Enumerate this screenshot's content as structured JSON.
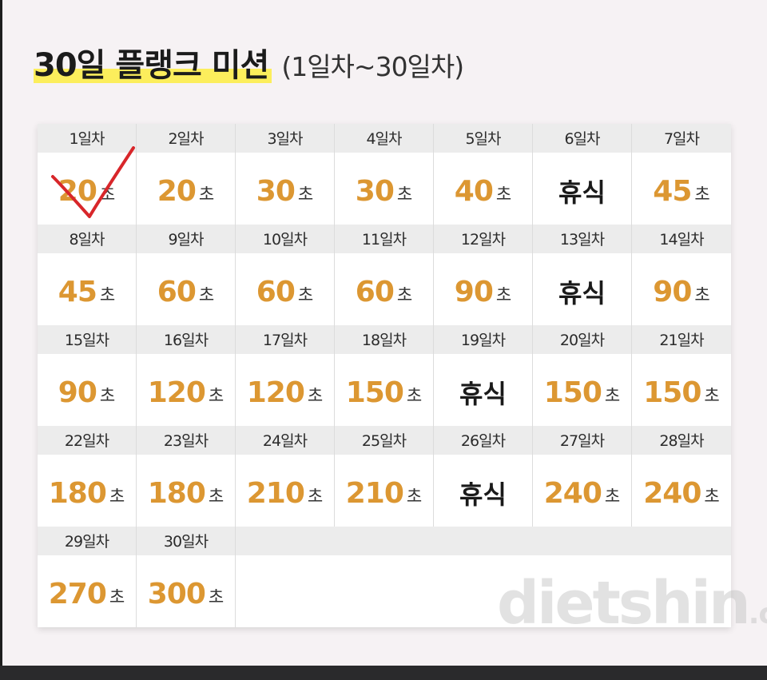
{
  "title": {
    "main": "30일 플랭크 미션",
    "sub": "(1일차~30일차)"
  },
  "unit": "초",
  "rest_label": "휴식",
  "watermark": {
    "main": "dietshin",
    "suffix": ".com"
  },
  "colors": {
    "highlight": "#fcee5c",
    "value": "#dc9732",
    "check": "#d8262a"
  },
  "days": [
    {
      "label": "1일차",
      "value": "20"
    },
    {
      "label": "2일차",
      "value": "20"
    },
    {
      "label": "3일차",
      "value": "30"
    },
    {
      "label": "4일차",
      "value": "30"
    },
    {
      "label": "5일차",
      "value": "40"
    },
    {
      "label": "6일차",
      "value": "휴식"
    },
    {
      "label": "7일차",
      "value": "45"
    },
    {
      "label": "8일차",
      "value": "45"
    },
    {
      "label": "9일차",
      "value": "60"
    },
    {
      "label": "10일차",
      "value": "60"
    },
    {
      "label": "11일차",
      "value": "60"
    },
    {
      "label": "12일차",
      "value": "90"
    },
    {
      "label": "13일차",
      "value": "휴식"
    },
    {
      "label": "14일차",
      "value": "90"
    },
    {
      "label": "15일차",
      "value": "90"
    },
    {
      "label": "16일차",
      "value": "120"
    },
    {
      "label": "17일차",
      "value": "120"
    },
    {
      "label": "18일차",
      "value": "150"
    },
    {
      "label": "19일차",
      "value": "휴식"
    },
    {
      "label": "20일차",
      "value": "150"
    },
    {
      "label": "21일차",
      "value": "150"
    },
    {
      "label": "22일차",
      "value": "180"
    },
    {
      "label": "23일차",
      "value": "180"
    },
    {
      "label": "24일차",
      "value": "210"
    },
    {
      "label": "25일차",
      "value": "210"
    },
    {
      "label": "26일차",
      "value": "휴식"
    },
    {
      "label": "27일차",
      "value": "240"
    },
    {
      "label": "28일차",
      "value": "240"
    },
    {
      "label": "29일차",
      "value": "270"
    },
    {
      "label": "30일차",
      "value": "300"
    }
  ]
}
